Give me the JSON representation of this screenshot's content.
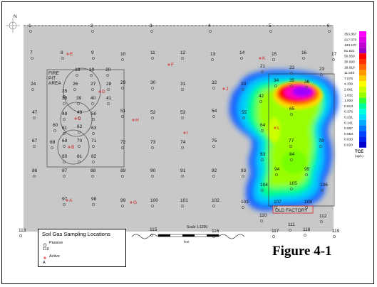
{
  "figure": {
    "label": "Figure 4-1"
  },
  "legend": {
    "title": "Soil Gas Sampling Locations",
    "passive_label": "Passive",
    "passive_example": "110",
    "active_label": "Active",
    "active_example": "A"
  },
  "scale": {
    "label": "Scale 1:1200",
    "unit": "feet"
  },
  "annotations": {
    "fire_pit_line1": "FIRE",
    "fire_pit_line2": "PIT",
    "fire_pit_line3": "AREA",
    "old_factory": "OLD FACTORY",
    "north_arrow": "N"
  },
  "colorbar": {
    "values": [
      "353.887",
      "217.070",
      "133.107",
      "81.821",
      "50.050",
      "30.690",
      "18.819",
      "11.540",
      "7.076",
      "4.339",
      "2.661",
      "1.632",
      "1.000",
      "0.613",
      "0.376",
      "0.231",
      "0.141",
      "0.087",
      "0.053",
      "0.033",
      "0.020"
    ],
    "colors": [
      "#ff00ff",
      "#e000e8",
      "#c000d0",
      "#9a00c0",
      "#ff0000",
      "#ff3300",
      "#ff6600",
      "#ff9900",
      "#ffcc00",
      "#ffff00",
      "#ccff00",
      "#99ff00",
      "#33ff33",
      "#00ff99",
      "#00ffdd",
      "#00ddff",
      "#00aaff",
      "#0077ff",
      "#0044ff",
      "#0022ee",
      "#0000cc"
    ],
    "title": "TCE",
    "unit": "(ug/L)"
  },
  "sample_points_passive": [
    {
      "id": "1"
    },
    {
      "id": "2"
    },
    {
      "id": "3"
    },
    {
      "id": "4"
    },
    {
      "id": "5"
    },
    {
      "id": "6"
    },
    {
      "id": "7"
    },
    {
      "id": "8"
    },
    {
      "id": "9"
    },
    {
      "id": "10"
    },
    {
      "id": "11"
    },
    {
      "id": "12"
    },
    {
      "id": "13"
    },
    {
      "id": "14"
    },
    {
      "id": "15"
    },
    {
      "id": "16"
    },
    {
      "id": "17"
    },
    {
      "id": "18"
    },
    {
      "id": "19"
    },
    {
      "id": "20"
    },
    {
      "id": "21"
    },
    {
      "id": "22"
    },
    {
      "id": "23"
    },
    {
      "id": "24"
    },
    {
      "id": "25"
    },
    {
      "id": "26"
    },
    {
      "id": "27"
    },
    {
      "id": "28"
    },
    {
      "id": "29"
    },
    {
      "id": "30"
    },
    {
      "id": "31"
    },
    {
      "id": "32"
    },
    {
      "id": "33"
    },
    {
      "id": "34"
    },
    {
      "id": "35"
    },
    {
      "id": "36"
    },
    {
      "id": "38"
    },
    {
      "id": "39"
    },
    {
      "id": "40"
    },
    {
      "id": "41"
    },
    {
      "id": "42"
    },
    {
      "id": "47"
    },
    {
      "id": "48"
    },
    {
      "id": "49"
    },
    {
      "id": "50"
    },
    {
      "id": "51"
    },
    {
      "id": "52"
    },
    {
      "id": "53"
    },
    {
      "id": "54"
    },
    {
      "id": "55"
    },
    {
      "id": "65"
    },
    {
      "id": "60"
    },
    {
      "id": "61"
    },
    {
      "id": "62"
    },
    {
      "id": "63"
    },
    {
      "id": "64"
    },
    {
      "id": "67"
    },
    {
      "id": "68"
    },
    {
      "id": "69"
    },
    {
      "id": "70"
    },
    {
      "id": "71"
    },
    {
      "id": "72"
    },
    {
      "id": "73"
    },
    {
      "id": "74"
    },
    {
      "id": "75"
    },
    {
      "id": "77"
    },
    {
      "id": "78"
    },
    {
      "id": "80"
    },
    {
      "id": "81"
    },
    {
      "id": "82"
    },
    {
      "id": "83"
    },
    {
      "id": "84"
    },
    {
      "id": "86"
    },
    {
      "id": "87"
    },
    {
      "id": "88"
    },
    {
      "id": "89"
    },
    {
      "id": "90"
    },
    {
      "id": "91"
    },
    {
      "id": "92"
    },
    {
      "id": "93"
    },
    {
      "id": "94"
    },
    {
      "id": "95"
    },
    {
      "id": "97"
    },
    {
      "id": "98"
    },
    {
      "id": "99"
    },
    {
      "id": "100"
    },
    {
      "id": "101"
    },
    {
      "id": "102"
    },
    {
      "id": "103"
    },
    {
      "id": "104"
    },
    {
      "id": "105"
    },
    {
      "id": "106"
    },
    {
      "id": "107"
    },
    {
      "id": "108"
    },
    {
      "id": "110"
    },
    {
      "id": "111"
    },
    {
      "id": "112"
    },
    {
      "id": "113"
    },
    {
      "id": "114"
    },
    {
      "id": "115"
    },
    {
      "id": "116"
    },
    {
      "id": "117"
    },
    {
      "id": "118"
    },
    {
      "id": "119"
    }
  ],
  "sample_points_active": [
    {
      "id": "E"
    },
    {
      "id": "F"
    },
    {
      "id": "K"
    },
    {
      "id": "J"
    },
    {
      "id": "D"
    },
    {
      "id": "C"
    },
    {
      "id": "H"
    },
    {
      "id": "I"
    },
    {
      "id": "B"
    },
    {
      "id": "A"
    },
    {
      "id": "G"
    },
    {
      "id": "L"
    }
  ]
}
